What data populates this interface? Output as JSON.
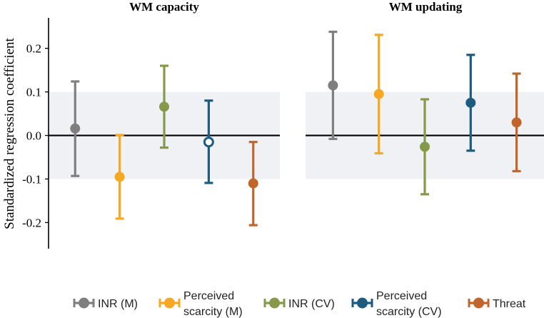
{
  "chart_data": {
    "type": "errorbar",
    "ylabel": "Standardized regression coefficient",
    "ylim": [
      -0.26,
      0.27
    ],
    "yticks": [
      {
        "value": 0.2,
        "label": "0.2"
      },
      {
        "value": 0.1,
        "label": "0.1"
      },
      {
        "value": 0.0,
        "label": "0.0"
      },
      {
        "value": -0.1,
        "label": "-0.1"
      },
      {
        "value": -0.2,
        "label": "-0.2"
      }
    ],
    "shaded_band": [
      -0.1,
      0.1
    ],
    "reference_line": 0,
    "panels": [
      {
        "title": "WM capacity",
        "points": [
          {
            "series": "INR (M)",
            "estimate": 0.016,
            "lower": -0.093,
            "upper": 0.124,
            "filled": true
          },
          {
            "series": "Perceived scarcity (M)",
            "estimate": -0.095,
            "lower": -0.191,
            "upper": 0.001,
            "filled": true
          },
          {
            "series": "INR (CV)",
            "estimate": 0.066,
            "lower": -0.028,
            "upper": 0.16,
            "filled": true
          },
          {
            "series": "Perceived scarcity (CV)",
            "estimate": -0.015,
            "lower": -0.109,
            "upper": 0.08,
            "filled": false
          },
          {
            "series": "Threat",
            "estimate": -0.11,
            "lower": -0.206,
            "upper": -0.015,
            "filled": true
          }
        ]
      },
      {
        "title": "WM updating",
        "points": [
          {
            "series": "INR (M)",
            "estimate": 0.115,
            "lower": -0.008,
            "upper": 0.238,
            "filled": true
          },
          {
            "series": "Perceived scarcity (M)",
            "estimate": 0.095,
            "lower": -0.041,
            "upper": 0.231,
            "filled": true
          },
          {
            "series": "INR (CV)",
            "estimate": -0.026,
            "lower": -0.135,
            "upper": 0.083,
            "filled": true
          },
          {
            "series": "Perceived scarcity (CV)",
            "estimate": 0.075,
            "lower": -0.035,
            "upper": 0.185,
            "filled": true
          },
          {
            "series": "Threat",
            "estimate": 0.03,
            "lower": -0.082,
            "upper": 0.142,
            "filled": true
          }
        ]
      }
    ],
    "legend": [
      {
        "series": "INR (M)",
        "lines": [
          "INR (M)"
        ],
        "color": "#7f7f7f"
      },
      {
        "series": "Perceived scarcity (M)",
        "lines": [
          "Perceived",
          "scarcity (M)"
        ],
        "color": "#f7a823"
      },
      {
        "series": "INR (CV)",
        "lines": [
          "INR (CV)"
        ],
        "color": "#86994a"
      },
      {
        "series": "Perceived scarcity (CV)",
        "lines": [
          "Perceived",
          "scarcity (CV)"
        ],
        "color": "#1d5b7f"
      },
      {
        "series": "Threat",
        "lines": [
          "Threat"
        ],
        "color": "#c1652a"
      }
    ],
    "legend_position": "bottom"
  }
}
